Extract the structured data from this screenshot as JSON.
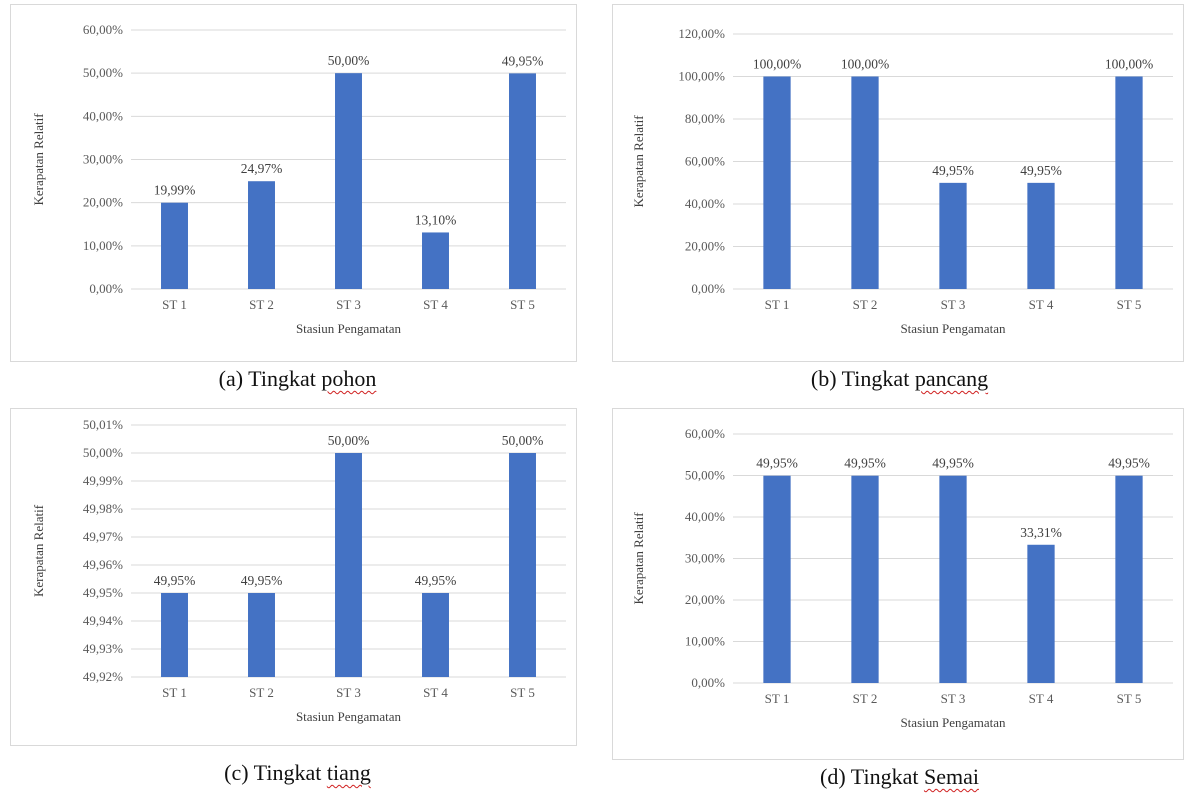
{
  "fragment": "y",
  "charts": [
    {
      "caption_prefix": "(a)  Tingkat ",
      "caption_word": "pohon",
      "chart_data": {
        "type": "bar",
        "categories": [
          "ST 1",
          "ST 2",
          "ST 3",
          "ST 4",
          "ST 5"
        ],
        "values": [
          19.99,
          24.97,
          50.0,
          13.1,
          49.95
        ],
        "data_labels": [
          "19,99%",
          "24,97%",
          "50,00%",
          "13,10%",
          "49,95%"
        ],
        "ylim": [
          0,
          60
        ],
        "yticks": [
          0,
          10,
          20,
          30,
          40,
          50,
          60
        ],
        "ytick_labels": [
          "0,00%",
          "10,00%",
          "20,00%",
          "30,00%",
          "40,00%",
          "50,00%",
          "60,00%"
        ],
        "xlabel": "Stasiun Pengamatan",
        "ylabel": "Kerapatan Relatif",
        "grid": true,
        "color": "#4472c4"
      }
    },
    {
      "caption_prefix": "(b)  Tingkat ",
      "caption_word": "pancang",
      "chart_data": {
        "type": "bar",
        "categories": [
          "ST 1",
          "ST 2",
          "ST 3",
          "ST 4",
          "ST 5"
        ],
        "values": [
          100.0,
          100.0,
          49.95,
          49.95,
          100.0
        ],
        "data_labels": [
          "100,00%",
          "100,00%",
          "49,95%",
          "49,95%",
          "100,00%"
        ],
        "ylim": [
          0,
          120
        ],
        "yticks": [
          0,
          20,
          40,
          60,
          80,
          100,
          120
        ],
        "ytick_labels": [
          "0,00%",
          "20,00%",
          "40,00%",
          "60,00%",
          "80,00%",
          "100,00%",
          "120,00%"
        ],
        "xlabel": "Stasiun Pengamatan",
        "ylabel": "Kerapatan Relatif",
        "grid": true,
        "color": "#4472c4"
      }
    },
    {
      "caption_prefix": "(c)  Tingkat ",
      "caption_word": "tiang",
      "chart_data": {
        "type": "bar",
        "categories": [
          "ST 1",
          "ST 2",
          "ST 3",
          "ST 4",
          "ST 5"
        ],
        "values": [
          49.95,
          49.95,
          50.0,
          49.95,
          50.0
        ],
        "data_labels": [
          "49,95%",
          "49,95%",
          "50,00%",
          "49,95%",
          "50,00%"
        ],
        "ylim": [
          49.92,
          50.01
        ],
        "yticks": [
          49.92,
          49.93,
          49.94,
          49.95,
          49.96,
          49.97,
          49.98,
          49.99,
          50.0,
          50.01
        ],
        "ytick_labels": [
          "49,92%",
          "49,93%",
          "49,94%",
          "49,95%",
          "49,96%",
          "49,97%",
          "49,98%",
          "49,99%",
          "50,00%",
          "50,01%"
        ],
        "xlabel": "Stasiun Pengamatan",
        "ylabel": "Kerapatan Relatif",
        "grid": true,
        "color": "#4472c4"
      }
    },
    {
      "caption_prefix": "(d)  Tingkat ",
      "caption_word": "Semai",
      "chart_data": {
        "type": "bar",
        "categories": [
          "ST 1",
          "ST 2",
          "ST 3",
          "ST 4",
          "ST 5"
        ],
        "values": [
          49.95,
          49.95,
          49.95,
          33.31,
          49.95
        ],
        "data_labels": [
          "49,95%",
          "49,95%",
          "49,95%",
          "33,31%",
          "49,95%"
        ],
        "ylim": [
          0,
          60
        ],
        "yticks": [
          0,
          10,
          20,
          30,
          40,
          50,
          60
        ],
        "ytick_labels": [
          "0,00%",
          "10,00%",
          "20,00%",
          "30,00%",
          "40,00%",
          "50,00%",
          "60,00%"
        ],
        "xlabel": "Stasiun Pengamatan",
        "ylabel": "Kerapatan Relatif",
        "grid": true,
        "color": "#4472c4"
      }
    }
  ]
}
